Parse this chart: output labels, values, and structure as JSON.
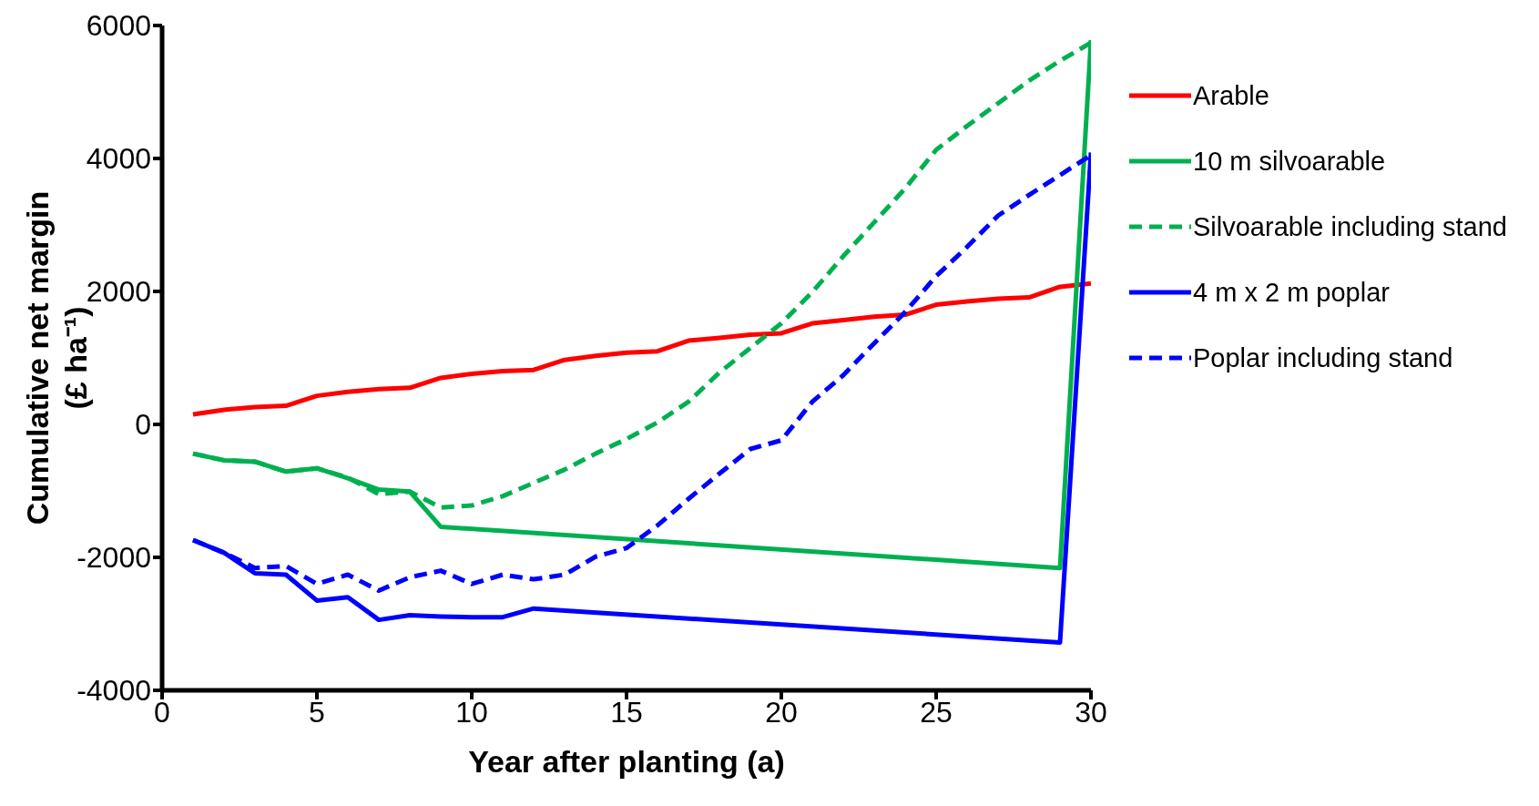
{
  "chart_data": {
    "type": "line",
    "xlabel": "Year after planting (a)",
    "ylabel": "Cumulative net margin (£ ha⁻¹)",
    "xlim": [
      0,
      30
    ],
    "xticks": [
      0,
      5,
      10,
      15,
      20,
      25,
      30
    ],
    "ylim": [
      -4000,
      6000
    ],
    "yticks": [
      -4000,
      -2000,
      0,
      2000,
      4000,
      6000
    ],
    "grid": false,
    "legend": "right",
    "marker": "none",
    "series": [
      {
        "name": "Arable",
        "color": "#ff0000",
        "line_style": "solid",
        "x": [
          1,
          2,
          3,
          4,
          5,
          6,
          7,
          8,
          9,
          10,
          11,
          12,
          13,
          14,
          15,
          16,
          17,
          18,
          19,
          20,
          21,
          22,
          23,
          24,
          25,
          26,
          27,
          28,
          29,
          30
        ],
        "values": [
          150,
          220,
          260,
          280,
          430,
          490,
          530,
          550,
          700,
          760,
          800,
          820,
          970,
          1030,
          1080,
          1100,
          1260,
          1300,
          1350,
          1370,
          1520,
          1570,
          1620,
          1650,
          1800,
          1850,
          1890,
          1910,
          2070,
          2120
        ]
      },
      {
        "name": "10 m silvoarable",
        "color": "#00b050",
        "line_style": "solid",
        "x": [
          1,
          2,
          3,
          4,
          5,
          6,
          7,
          8,
          9,
          29,
          30
        ],
        "values": [
          -440,
          -540,
          -560,
          -710,
          -660,
          -810,
          -980,
          -1010,
          -1540,
          -2160,
          5780
        ]
      },
      {
        "name": "Silvoarable including stand",
        "color": "#00b050",
        "line_style": "dashed",
        "x": [
          1,
          2,
          3,
          4,
          5,
          6,
          7,
          8,
          9,
          10,
          11,
          12,
          13,
          14,
          15,
          16,
          17,
          18,
          19,
          20,
          21,
          22,
          23,
          24,
          25,
          26,
          27,
          28,
          29,
          30
        ],
        "values": [
          -440,
          -540,
          -560,
          -710,
          -660,
          -800,
          -1050,
          -1010,
          -1250,
          -1220,
          -1080,
          -880,
          -680,
          -440,
          -220,
          30,
          340,
          780,
          1150,
          1520,
          1990,
          2530,
          3040,
          3550,
          4130,
          4490,
          4830,
          5170,
          5470,
          5740
        ]
      },
      {
        "name": "4 m x 2 m poplar",
        "color": "#0000ff",
        "line_style": "solid",
        "x": [
          1,
          2,
          3,
          4,
          5,
          6,
          7,
          8,
          9,
          10,
          11,
          12,
          29,
          30
        ],
        "values": [
          -1740,
          -1930,
          -2240,
          -2260,
          -2650,
          -2600,
          -2940,
          -2870,
          -2890,
          -2900,
          -2900,
          -2770,
          -3280,
          4090
        ]
      },
      {
        "name": "Poplar including stand",
        "color": "#0000ff",
        "line_style": "dashed",
        "x": [
          1,
          2,
          3,
          4,
          5,
          6,
          7,
          8,
          9,
          10,
          11,
          12,
          13,
          14,
          15,
          16,
          17,
          18,
          19,
          20,
          21,
          22,
          23,
          24,
          25,
          26,
          27,
          28,
          29,
          30
        ],
        "values": [
          -1740,
          -1930,
          -2160,
          -2130,
          -2400,
          -2260,
          -2500,
          -2300,
          -2200,
          -2400,
          -2260,
          -2330,
          -2260,
          -1990,
          -1860,
          -1520,
          -1120,
          -740,
          -370,
          -240,
          340,
          740,
          1220,
          1690,
          2230,
          2670,
          3140,
          3450,
          3750,
          4050
        ]
      }
    ]
  }
}
